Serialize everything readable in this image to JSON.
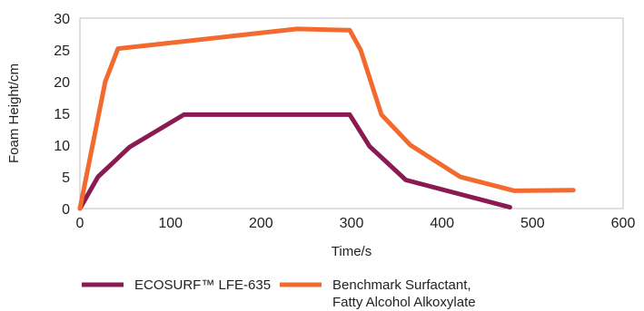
{
  "chart_data": {
    "type": "line",
    "xlabel": "Time/s",
    "ylabel": "Foam Height/cm",
    "xlim": [
      0,
      600
    ],
    "ylim": [
      0,
      30
    ],
    "x_ticks": [
      "0",
      "100",
      "200",
      "300",
      "400",
      "500",
      "600"
    ],
    "y_ticks": [
      "0",
      "5",
      "10",
      "15",
      "20",
      "25",
      "30"
    ],
    "grid": false,
    "legend_position": "bottom",
    "series": [
      {
        "name": "ECOSURF™ LFE-635",
        "color": "#8a1a52",
        "points": [
          [
            0,
            0
          ],
          [
            20,
            5
          ],
          [
            55,
            9.7
          ],
          [
            115,
            14.8
          ],
          [
            298,
            14.8
          ],
          [
            320,
            9.8
          ],
          [
            360,
            4.5
          ],
          [
            475,
            0.2
          ]
        ]
      },
      {
        "name": "Benchmark Surfactant, Fatty Alcohol Alkoxylate",
        "color": "#f26a2e",
        "points": [
          [
            0,
            0
          ],
          [
            28,
            20
          ],
          [
            42,
            25.2
          ],
          [
            240,
            28.3
          ],
          [
            298,
            28.1
          ],
          [
            310,
            25
          ],
          [
            333,
            14.8
          ],
          [
            365,
            10
          ],
          [
            420,
            5
          ],
          [
            480,
            2.8
          ],
          [
            545,
            2.9
          ]
        ]
      }
    ],
    "legend": [
      {
        "line1": "ECOSURF™ LFE-635",
        "line2": ""
      },
      {
        "line1": "Benchmark Surfactant,",
        "line2": "Fatty Alcohol Alkoxylate"
      }
    ]
  }
}
